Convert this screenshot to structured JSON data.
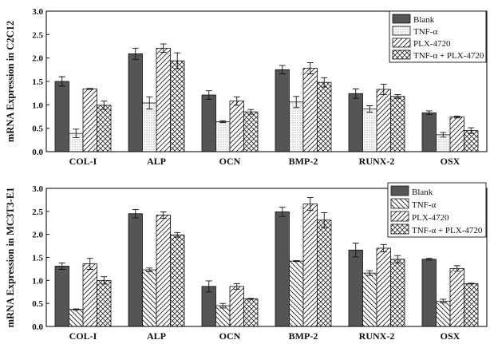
{
  "chart_data": [
    {
      "type": "bar",
      "ylabel": "mRNA Expression in C2C12",
      "ylim": [
        0,
        3.0
      ],
      "yticks": [
        "0.0",
        "0.5",
        "1.0",
        "1.5",
        "2.0",
        "2.5",
        "3.0"
      ],
      "categories": [
        "COL-I",
        "ALP",
        "OCN",
        "BMP-2",
        "RUNX-2",
        "OSX"
      ],
      "legend_position": "top-right",
      "series": [
        {
          "name": "Blank",
          "pattern": "solid",
          "values": [
            1.5,
            2.09,
            1.21,
            1.75,
            1.24,
            0.83
          ],
          "errors": [
            0.1,
            0.12,
            0.09,
            0.09,
            0.1,
            0.04
          ]
        },
        {
          "name": "TNF-α",
          "pattern": "dots",
          "values": [
            0.39,
            1.04,
            0.64,
            1.06,
            0.91,
            0.36
          ],
          "errors": [
            0.09,
            0.13,
            0.02,
            0.12,
            0.07,
            0.05
          ]
        },
        {
          "name": "PLX-4720",
          "pattern": "diag",
          "values": [
            1.34,
            2.21,
            1.08,
            1.78,
            1.33,
            0.74
          ],
          "errors": [
            0.01,
            0.09,
            0.09,
            0.12,
            0.11,
            0.02
          ]
        },
        {
          "name": "TNF-α + PLX-4720",
          "pattern": "cross",
          "values": [
            0.99,
            1.94,
            0.85,
            1.48,
            1.18,
            0.45
          ],
          "errors": [
            0.09,
            0.17,
            0.05,
            0.1,
            0.04,
            0.06
          ]
        }
      ]
    },
    {
      "type": "bar",
      "ylabel": "mRNA Expression in MC3T3-E1",
      "ylim": [
        0,
        3.0
      ],
      "yticks": [
        "0.0",
        "0.5",
        "1.0",
        "1.5",
        "2.0",
        "2.5",
        "3.0"
      ],
      "categories": [
        "COL-I",
        "ALP",
        "OCN",
        "BMP-2",
        "RUNX-2",
        "OSX"
      ],
      "legend_position": "top-right",
      "series": [
        {
          "name": "Blank",
          "pattern": "solid",
          "values": [
            1.31,
            2.45,
            0.87,
            2.49,
            1.66,
            1.46
          ],
          "errors": [
            0.07,
            0.09,
            0.12,
            0.1,
            0.15,
            0.02
          ]
        },
        {
          "name": "TNF-α",
          "pattern": "diag-back",
          "values": [
            0.37,
            1.23,
            0.45,
            1.42,
            1.16,
            0.55
          ],
          "errors": [
            0.01,
            0.04,
            0.05,
            0.01,
            0.05,
            0.04
          ]
        },
        {
          "name": "PLX-4720",
          "pattern": "diag",
          "values": [
            1.36,
            2.42,
            0.87,
            2.66,
            1.7,
            1.26
          ],
          "errors": [
            0.12,
            0.07,
            0.06,
            0.14,
            0.08,
            0.06
          ]
        },
        {
          "name": "TNF-α + PLX-4720",
          "pattern": "cross",
          "values": [
            1.0,
            1.99,
            0.6,
            2.31,
            1.46,
            0.93
          ],
          "errors": [
            0.08,
            0.05,
            0.01,
            0.16,
            0.08,
            0.01
          ]
        }
      ]
    }
  ]
}
